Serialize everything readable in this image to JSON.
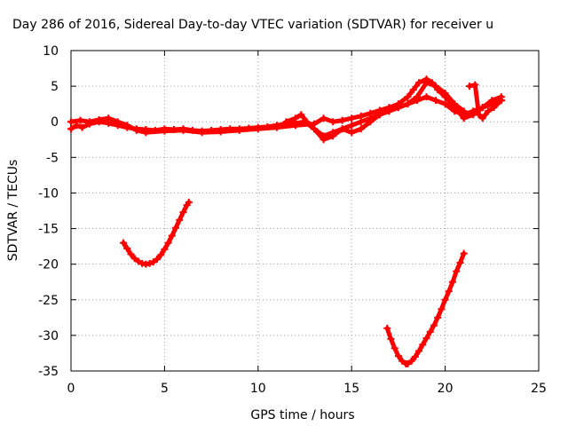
{
  "chart_data": {
    "type": "scatter",
    "title": "Day 286 of 2016, Sidereal Day-to-day VTEC variation (SDTVAR) for receiver u",
    "xlabel": "GPS time / hours",
    "ylabel": "SDTVAR / TECUs",
    "xlim": [
      0,
      25
    ],
    "ylim": [
      -35,
      10
    ],
    "xticks": [
      "0",
      "5",
      "10",
      "15",
      "20",
      "25"
    ],
    "yticks": [
      "-35",
      "-30",
      "-25",
      "-20",
      "-15",
      "-10",
      "-5",
      "0",
      "5",
      "10"
    ],
    "grid": true,
    "marker": "plus",
    "color": "#ff0000",
    "series": [
      {
        "x": [
          0.0,
          0.3,
          0.6,
          1.0,
          1.5,
          2.0,
          2.5,
          3.0,
          3.5,
          4.0,
          4.5,
          5.0,
          5.5,
          6.0,
          6.5,
          7.0,
          7.5,
          8.0,
          8.5,
          9.0,
          9.5,
          10.0,
          10.5,
          11.0,
          11.5,
          12.0,
          12.5,
          13.0,
          13.5,
          14.0,
          14.5,
          15.0,
          15.5,
          16.0,
          16.5,
          17.0,
          17.5,
          18.0,
          18.5,
          19.0,
          19.5,
          20.0,
          20.5,
          21.0,
          21.5,
          22.0,
          22.5,
          23.0
        ],
        "y": [
          -1.0,
          -0.5,
          -0.8,
          -0.3,
          0.0,
          -0.2,
          -0.5,
          -0.8,
          -1.0,
          -1.1,
          -1.2,
          -1.0,
          -1.1,
          -1.0,
          -1.2,
          -1.3,
          -1.2,
          -1.1,
          -1.0,
          -1.0,
          -0.9,
          -0.8,
          -0.7,
          -0.5,
          -0.3,
          -0.2,
          0.0,
          -1.0,
          -2.0,
          -1.5,
          -1.0,
          -0.5,
          0.0,
          0.5,
          1.0,
          1.5,
          2.0,
          2.5,
          3.0,
          3.5,
          3.0,
          2.5,
          1.5,
          1.0,
          1.5,
          2.0,
          2.5,
          3.0
        ]
      },
      {
        "x": [
          0.0,
          0.5,
          1.0,
          1.5,
          2.0,
          2.5,
          3.0,
          3.5,
          4.0,
          5.0,
          6.0,
          7.0,
          8.0,
          9.0,
          10.0,
          11.0,
          12.0,
          13.0,
          13.5,
          14.0,
          14.5,
          15.0,
          15.5,
          16.0,
          16.5,
          17.0,
          17.5,
          18.0,
          18.3,
          18.6,
          19.0,
          19.3,
          19.6,
          20.0,
          20.5,
          21.0,
          21.5,
          22.0,
          22.5,
          23.0
        ],
        "y": [
          0.0,
          0.2,
          0.0,
          0.3,
          0.5,
          0.0,
          -0.5,
          -1.2,
          -1.5,
          -1.3,
          -1.2,
          -1.5,
          -1.4,
          -1.2,
          -1.0,
          -0.8,
          -0.5,
          -0.3,
          0.5,
          0.0,
          0.2,
          0.5,
          0.8,
          1.2,
          1.6,
          2.0,
          2.5,
          3.5,
          4.5,
          5.5,
          6.0,
          5.5,
          4.5,
          3.5,
          2.0,
          0.5,
          1.0,
          2.0,
          3.0,
          3.5
        ]
      },
      {
        "x": [
          11.5,
          12.0,
          12.3,
          12.6,
          13.0,
          13.5,
          14.0,
          14.5,
          15.0,
          15.5,
          16.0,
          16.5,
          17.0,
          17.5,
          18.0,
          18.5,
          19.0,
          19.5,
          20.0,
          20.5,
          21.0
        ],
        "y": [
          0.0,
          0.5,
          1.0,
          0.0,
          -1.0,
          -2.5,
          -2.0,
          -1.0,
          -1.5,
          -1.0,
          0.0,
          1.0,
          1.5,
          2.0,
          2.5,
          3.5,
          5.5,
          5.0,
          4.0,
          2.5,
          1.5
        ]
      },
      {
        "x": [
          21.3,
          21.6,
          21.8,
          22.0,
          22.3,
          22.6,
          23.0
        ],
        "y": [
          5.0,
          5.2,
          1.0,
          0.5,
          1.5,
          2.0,
          3.0
        ]
      },
      {
        "x": [
          2.8,
          3.0,
          3.2,
          3.4,
          3.6,
          3.8,
          4.0,
          4.2,
          4.4,
          4.6,
          4.8,
          5.0,
          5.2,
          5.4,
          5.6,
          5.8,
          6.0,
          6.2,
          6.3
        ],
        "y": [
          -17.0,
          -17.8,
          -18.6,
          -19.2,
          -19.6,
          -19.9,
          -20.0,
          -19.9,
          -19.7,
          -19.3,
          -18.7,
          -17.9,
          -17.0,
          -16.0,
          -14.9,
          -13.8,
          -12.7,
          -11.7,
          -11.3
        ]
      },
      {
        "x": [
          16.9,
          17.1,
          17.3,
          17.5,
          17.7,
          17.9,
          18.0,
          18.2,
          18.4,
          18.6,
          18.8,
          19.0,
          19.2,
          19.4,
          19.6,
          19.8,
          20.0,
          20.2,
          20.4,
          20.6,
          20.8,
          21.0
        ],
        "y": [
          -29.0,
          -30.5,
          -31.8,
          -32.9,
          -33.6,
          -34.0,
          -34.0,
          -33.6,
          -33.0,
          -32.2,
          -31.3,
          -30.4,
          -29.5,
          -28.6,
          -27.5,
          -26.3,
          -25.0,
          -23.8,
          -22.5,
          -21.0,
          -19.8,
          -18.5
        ]
      }
    ]
  }
}
